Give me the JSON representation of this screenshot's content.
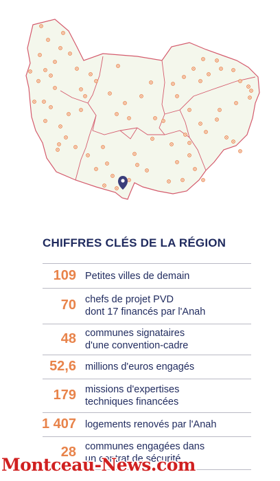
{
  "title": "CHIFFRES CLÉS DE LA RÉGION",
  "colors": {
    "title": "#1f2a5e",
    "number": "#e8834a",
    "map_fill": "#f4f7ec",
    "map_border": "#d45a6c",
    "marker": "#e8834a",
    "location_pin": "#3a3d7a",
    "watermark": "#d02020"
  },
  "stats": [
    {
      "value": "109",
      "lines": [
        "Petites villes de demain"
      ]
    },
    {
      "value": "70",
      "lines": [
        "chefs de projet PVD",
        "dont 17 financés par l'Anah"
      ]
    },
    {
      "value": "48",
      "lines": [
        "communes signataires",
        "d'une convention-cadre"
      ]
    },
    {
      "value": "52,6",
      "lines": [
        "millions d'euros engagés"
      ]
    },
    {
      "value": "179",
      "lines": [
        "missions d'expertises",
        "techniques financées"
      ]
    },
    {
      "value": "1 407",
      "lines": [
        "logements renovés par l'Anah"
      ]
    },
    {
      "value": "28",
      "lines": [
        "communes engagées dans",
        "un contrat de sécurité"
      ]
    }
  ],
  "watermark": "Montceau-News.com",
  "map": {
    "marker_icon": "circle-marker-icon",
    "pin_icon": "location-pin-icon"
  }
}
